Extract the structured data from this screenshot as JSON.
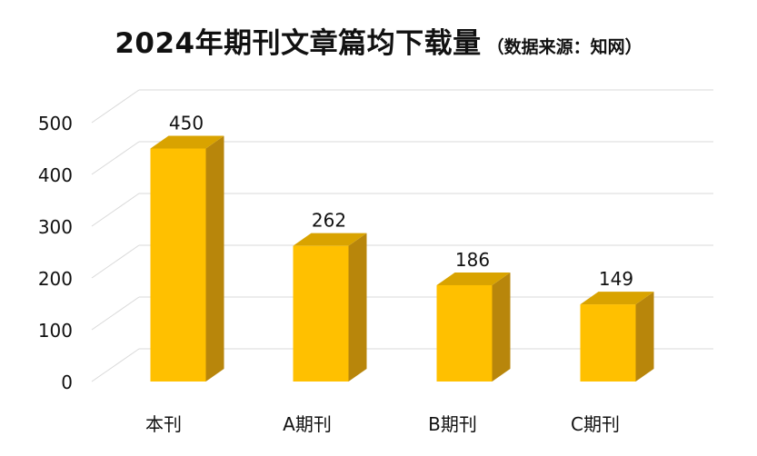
{
  "chart_data": {
    "type": "bar",
    "title": "2024年期刊文章篇均下载量",
    "subtitle": "（数据来源：知网）",
    "categories": [
      "本刊",
      "A期刊",
      "B期刊",
      "C期刊"
    ],
    "values": [
      450,
      262,
      186,
      149
    ],
    "value_labels": [
      "450",
      "262",
      "186",
      "149"
    ],
    "yticks": [
      "0",
      "100",
      "200",
      "300",
      "400",
      "500"
    ],
    "ylim": [
      0,
      500
    ],
    "grid": true,
    "style": "3d-column",
    "bar_color": "#FFC000",
    "bar_side_color": "#B8860B",
    "bar_top_color": "#D9A300"
  }
}
